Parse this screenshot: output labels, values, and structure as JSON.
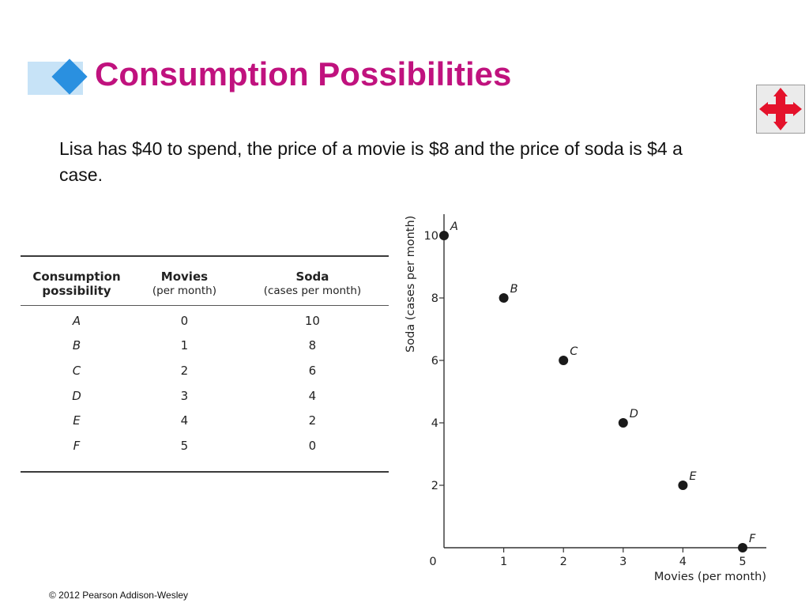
{
  "slide": {
    "title": "Consumption Possibilities",
    "intro": "Lisa has $40 to spend, the price of a movie is $8 and the price of soda is $4 a case.",
    "footer": "© 2012 Pearson Addison-Wesley",
    "accent": "#c0127e",
    "nav_icon": "four-way-arrows-icon"
  },
  "table": {
    "col1_line1": "Consumption",
    "col1_line2": "possibility",
    "col2_line1": "Movies",
    "col2_line2": "(per month)",
    "col3_line1": "Soda",
    "col3_line2": "(cases per month)",
    "rows": [
      {
        "label": "A",
        "movies": "0",
        "soda": "10"
      },
      {
        "label": "B",
        "movies": "1",
        "soda": "8"
      },
      {
        "label": "C",
        "movies": "2",
        "soda": "6"
      },
      {
        "label": "D",
        "movies": "3",
        "soda": "4"
      },
      {
        "label": "E",
        "movies": "4",
        "soda": "2"
      },
      {
        "label": "F",
        "movies": "5",
        "soda": "0"
      }
    ]
  },
  "chart_data": {
    "type": "scatter",
    "xlabel": "Movies (per month)",
    "ylabel": "Soda (cases per month)",
    "xlim": [
      0,
      5
    ],
    "ylim": [
      0,
      10
    ],
    "x_ticks": [
      "0",
      "1",
      "2",
      "3",
      "4",
      "5"
    ],
    "y_ticks": [
      "2",
      "4",
      "6",
      "8",
      "10"
    ],
    "grid": false,
    "points": [
      {
        "label": "A",
        "x": 0,
        "y": 10
      },
      {
        "label": "B",
        "x": 1,
        "y": 8
      },
      {
        "label": "C",
        "x": 2,
        "y": 6
      },
      {
        "label": "D",
        "x": 3,
        "y": 4
      },
      {
        "label": "E",
        "x": 4,
        "y": 2
      },
      {
        "label": "F",
        "x": 5,
        "y": 0
      }
    ]
  }
}
